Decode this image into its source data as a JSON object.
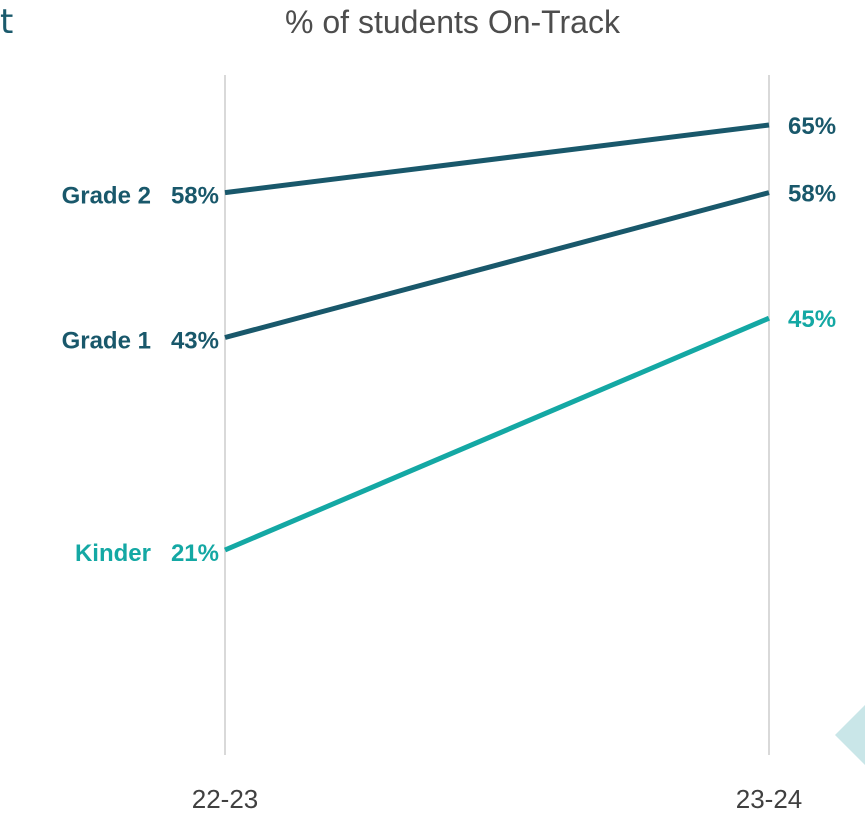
{
  "header": {
    "cropped_glyph": "t"
  },
  "chart_data": {
    "type": "line",
    "title": "% of students On-Track",
    "categories": [
      "22-23",
      "23-24"
    ],
    "y_unit": "%",
    "ylim": [
      0,
      80
    ],
    "grid": false,
    "legend": "inline labels at line starts",
    "series": [
      {
        "name": "Grade 2",
        "values": [
          58,
          65
        ],
        "color": "#19586b",
        "start_label": "58%",
        "end_label": "65%"
      },
      {
        "name": "Grade 1",
        "values": [
          43,
          58
        ],
        "color": "#19586b",
        "start_label": "43%",
        "end_label": "58%"
      },
      {
        "name": "Kinder",
        "values": [
          21,
          45
        ],
        "color": "#14a8a4",
        "start_label": "21%",
        "end_label": "45%"
      }
    ],
    "colors": {
      "axis_line": "#d9d9d9",
      "tick_text": "#404040",
      "decor": "#c9e6e8"
    }
  }
}
